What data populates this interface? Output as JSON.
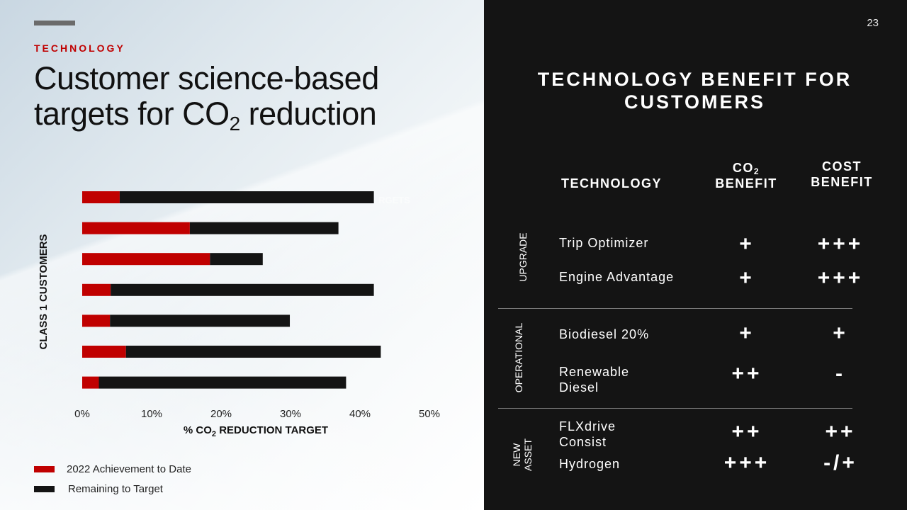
{
  "slide": {
    "section": "TECHNOLOGY",
    "title_line1": "Customer science-based",
    "title_line2_prefix": "targets for CO",
    "title_line2_sub": "2",
    "title_line2_suffix": " reduction",
    "page_number": "23"
  },
  "chart_data": {
    "type": "bar",
    "orientation": "horizontal",
    "stacked": true,
    "y_axis_title": "CLASS 1 CUSTOMERS",
    "x_axis_title_prefix": "% CO",
    "x_axis_title_sub": "2",
    "x_axis_title_suffix": " REDUCTION TARGET",
    "xlim": [
      0,
      50
    ],
    "x_ticks": [
      "0%",
      "10%",
      "20%",
      "30%",
      "40%",
      "50%"
    ],
    "x_tick_values": [
      0,
      10,
      20,
      30,
      40,
      50
    ],
    "grid": false,
    "partially_hidden_text": "RGETS",
    "series": [
      {
        "name": "2022 Achievement to Date",
        "color": "#c00000",
        "values": [
          5.4,
          15.5,
          18.4,
          4.1,
          4.0,
          6.3,
          2.4
        ]
      },
      {
        "name": "Remaining to Target",
        "color": "#141414",
        "values": [
          36.6,
          21.4,
          7.6,
          37.9,
          25.9,
          36.7,
          35.6
        ]
      }
    ],
    "legend_position": "bottom-left"
  },
  "benefits": {
    "title_line1": "TECHNOLOGY BENEFIT FOR",
    "title_line2": "CUSTOMERS",
    "col_technology": "TECHNOLOGY",
    "col_co2_prefix": "CO",
    "col_co2_sub": "2",
    "col_co2_line2": "BENEFIT",
    "col_cost_line1": "COST",
    "col_cost_line2": "BENEFIT",
    "groups": [
      {
        "label": "UPGRADE",
        "rows": [
          {
            "name": "Trip Optimizer",
            "co2": "+",
            "cost": "+++"
          },
          {
            "name": "Engine Advantage",
            "co2": "+",
            "cost": "+++"
          }
        ]
      },
      {
        "label": "OPERATIONAL",
        "rows": [
          {
            "name": "Biodiesel 20%",
            "co2": "+",
            "cost": "+"
          },
          {
            "name": "Renewable Diesel",
            "co2": "++",
            "cost": "-"
          }
        ]
      },
      {
        "label_line1": "NEW",
        "label_line2": "ASSET",
        "rows": [
          {
            "name": "FLXdrive Consist",
            "co2": "++",
            "cost": "++"
          },
          {
            "name": "Hydrogen",
            "co2": "+++",
            "cost": "-/+"
          }
        ]
      }
    ]
  }
}
